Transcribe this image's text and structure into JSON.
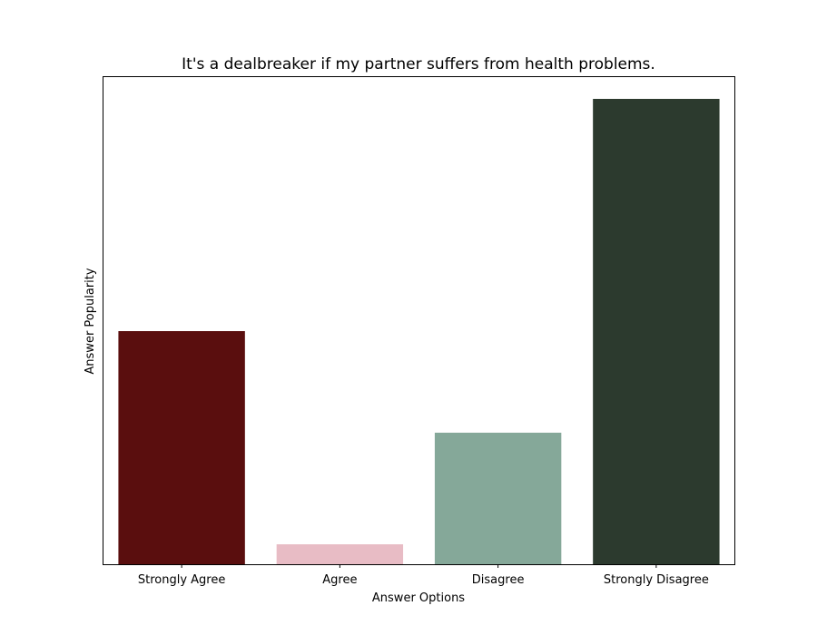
{
  "chart_data": {
    "type": "bar",
    "title": "It's a dealbreaker if my partner suffers from health problems.",
    "xlabel": "Answer Options",
    "ylabel": "Answer Popularity",
    "categories": [
      "Strongly Agree",
      "Agree",
      "Disagree",
      "Strongly Disagree"
    ],
    "values": [
      257,
      22,
      145,
      513
    ],
    "colors": [
      "#5a0e0e",
      "#e8bcc5",
      "#85a899",
      "#2c3a2e"
    ],
    "ylim": [
      0,
      538
    ],
    "grid": false,
    "y_ticks_shown": false
  }
}
